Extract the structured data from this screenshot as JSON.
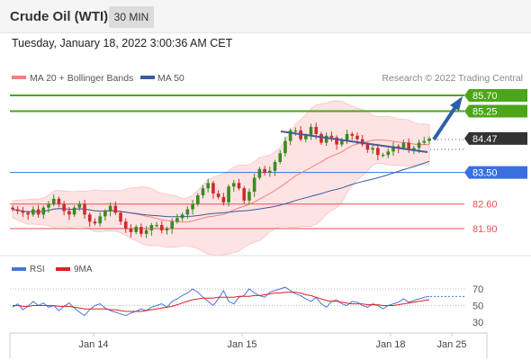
{
  "header": {
    "title": "Crude Oil (WTI)",
    "timeframe": "30 MIN",
    "datetime": "Tuesday, January 18, 2022 3:00:36 AM CET"
  },
  "legend": {
    "ma20": "MA 20 + Bollinger Bands",
    "ma50": "MA 50",
    "credit": "Research © 2022 Trading Central",
    "rsi": "RSI",
    "rsi_ma": "9MA"
  },
  "colors": {
    "ma20": "#f08080",
    "ma50": "#3a5a9c",
    "bollinger_fill": "#fde3e3",
    "green_level": "#4ca619",
    "blue_level": "#3a6fe0",
    "red_level": "#e85050",
    "candle_up": "#3a8a1f",
    "candle_down": "#cf2a2a",
    "arrow": "#2f5fa8",
    "rsi": "#4a74d6",
    "rsi_ma": "#e02020"
  },
  "chart_data": {
    "type": "candlestick",
    "price_axis": {
      "min": 80.9,
      "max": 86.5
    },
    "levels": [
      {
        "value": 85.7,
        "label": "85.70",
        "kind": "resistance",
        "color": "#4ca619"
      },
      {
        "value": 85.25,
        "label": "85.25",
        "kind": "resistance",
        "color": "#4ca619"
      },
      {
        "value": 84.47,
        "label": "84.47",
        "kind": "last-price",
        "color": "#333333"
      },
      {
        "value": 83.5,
        "label": "83.50",
        "kind": "pivot",
        "color": "#3a6fe0"
      },
      {
        "value": 82.6,
        "label": "82.60",
        "kind": "support",
        "color": "#e85050"
      },
      {
        "value": 81.9,
        "label": "81.90",
        "kind": "support",
        "color": "#e85050"
      }
    ],
    "x_labels": [
      "Jan 14",
      "Jan 15",
      "Jan 18",
      "Jan 25"
    ],
    "rsi_axis": {
      "min": 20,
      "max": 80,
      "ticks": [
        "70",
        "50",
        "30"
      ]
    },
    "closes": [
      82.45,
      82.4,
      82.35,
      82.3,
      82.45,
      82.3,
      82.5,
      82.6,
      82.75,
      82.6,
      82.4,
      82.3,
      82.5,
      82.6,
      82.3,
      82.1,
      82.05,
      82.25,
      82.4,
      82.55,
      82.35,
      82.1,
      81.9,
      81.8,
      81.95,
      81.75,
      81.85,
      82.0,
      82.0,
      81.85,
      81.9,
      82.1,
      82.2,
      82.3,
      82.45,
      82.6,
      82.85,
      83.05,
      83.2,
      82.9,
      82.8,
      82.65,
      83.1,
      83.2,
      83.05,
      82.7,
      82.95,
      83.35,
      83.6,
      83.5,
      83.55,
      83.8,
      84.05,
      84.4,
      84.7,
      84.7,
      84.45,
      84.55,
      84.8,
      84.6,
      84.35,
      84.55,
      84.5,
      84.3,
      84.4,
      84.6,
      84.55,
      84.45,
      84.3,
      84.15,
      84.2,
      84.0,
      84.0,
      84.1,
      84.25,
      84.2,
      84.35,
      84.15,
      84.2,
      84.35,
      84.4,
      84.47
    ],
    "rsi": [
      48,
      52,
      45,
      49,
      55,
      50,
      53,
      48,
      50,
      44,
      49,
      53,
      47,
      42,
      38,
      45,
      50,
      52,
      47,
      44,
      42,
      40,
      38,
      41,
      43,
      46,
      44,
      48,
      50,
      52,
      48,
      55,
      58,
      62,
      65,
      70,
      66,
      60,
      55,
      50,
      58,
      68,
      55,
      52,
      60,
      62,
      70,
      65,
      62,
      60,
      66,
      68,
      70,
      72,
      68,
      64,
      62,
      58,
      55,
      60,
      52,
      48,
      55,
      57,
      52,
      50,
      55,
      54,
      50,
      48,
      52,
      50,
      46,
      50,
      52,
      54,
      58,
      54,
      56,
      58,
      60,
      61
    ],
    "rsi_ma": [
      50,
      50,
      49,
      49,
      50,
      50,
      50,
      50,
      50,
      49,
      49,
      49,
      48,
      47,
      46,
      46,
      46,
      46,
      46,
      45,
      45,
      44,
      43,
      43,
      43,
      43,
      44,
      45,
      46,
      47,
      48,
      49,
      51,
      53,
      55,
      57,
      58,
      59,
      59,
      59,
      60,
      60,
      60,
      60,
      61,
      61,
      61,
      62,
      62,
      63,
      64,
      65,
      65,
      66,
      66,
      66,
      65,
      63,
      62,
      60,
      58,
      56,
      55,
      55,
      54,
      53,
      52,
      52,
      52,
      51,
      51,
      51,
      50,
      50,
      50,
      51,
      52,
      53,
      54,
      55,
      56,
      57
    ]
  }
}
